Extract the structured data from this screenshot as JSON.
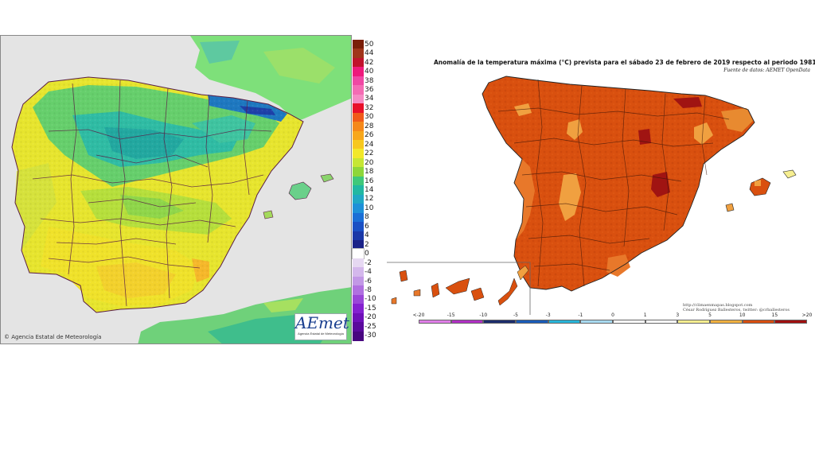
{
  "left_map": {
    "credit": "© Agencia Estatal de Meteorología",
    "logo": {
      "word": "AEmet",
      "subtitle": "Agencia Estatal de Meteorología"
    },
    "legend": [
      {
        "label": "50",
        "color": "#7a1e08"
      },
      {
        "label": "44",
        "color": "#a0341a"
      },
      {
        "label": "42",
        "color": "#c0122c"
      },
      {
        "label": "40",
        "color": "#ee1a7c"
      },
      {
        "label": "38",
        "color": "#f048a4"
      },
      {
        "label": "36",
        "color": "#f46cb4"
      },
      {
        "label": "34",
        "color": "#f58cc4"
      },
      {
        "label": "32",
        "color": "#e8102a"
      },
      {
        "label": "30",
        "color": "#f05a1a"
      },
      {
        "label": "28",
        "color": "#f5881a"
      },
      {
        "label": "26",
        "color": "#f7a71c"
      },
      {
        "label": "24",
        "color": "#f7c81e"
      },
      {
        "label": "22",
        "color": "#f2e82a"
      },
      {
        "label": "20",
        "color": "#c6e634"
      },
      {
        "label": "18",
        "color": "#8ed63a"
      },
      {
        "label": "16",
        "color": "#40c87a"
      },
      {
        "label": "14",
        "color": "#22b8a2"
      },
      {
        "label": "12",
        "color": "#20a8c4"
      },
      {
        "label": "10",
        "color": "#1e90d8"
      },
      {
        "label": "8",
        "color": "#1a6ed6"
      },
      {
        "label": "6",
        "color": "#1a50c4"
      },
      {
        "label": "4",
        "color": "#1a38a8"
      },
      {
        "label": "2",
        "color": "#1a2288"
      },
      {
        "label": "0",
        "color": "#ffffff"
      },
      {
        "label": "-2",
        "color": "#e6d8f2"
      },
      {
        "label": "-4",
        "color": "#d4b8ec"
      },
      {
        "label": "-6",
        "color": "#c298e6"
      },
      {
        "label": "-8",
        "color": "#b070e0"
      },
      {
        "label": "-10",
        "color": "#9a46d8"
      },
      {
        "label": "-15",
        "color": "#8420d0"
      },
      {
        "label": "-20",
        "color": "#6e10b8"
      },
      {
        "label": "-25",
        "color": "#5a0a9c"
      },
      {
        "label": "-30",
        "color": "#480680"
      }
    ]
  },
  "right_map": {
    "title": "Anomalía de la temperatura máxima (°C) prevista para el sábado 23 de febrero de 2019 respecto al periodo 1981-2010",
    "source": "Fuente de datos: AEMET OpenData",
    "credit_line1": "http://climaenmapas.blogspot.com",
    "credit_line2": "César Rodríguez Ballesteros, twitter: @crballesteros",
    "legend": [
      {
        "label": "<-20",
        "color": "#e07ee8"
      },
      {
        "label": "-15",
        "color": "#b030c4"
      },
      {
        "label": "-10",
        "color": "#1c2c6c"
      },
      {
        "label": "-5",
        "color": "#1a5cb8"
      },
      {
        "label": "-3",
        "color": "#28b4d8"
      },
      {
        "label": "-1",
        "color": "#a8daf0"
      },
      {
        "label": "0",
        "color": "#ffffff"
      },
      {
        "label": "1",
        "color": "#ffffff"
      },
      {
        "label": "3",
        "color": "#f6ee90"
      },
      {
        "label": "5",
        "color": "#f0b040"
      },
      {
        "label": "10",
        "color": "#d84e10"
      },
      {
        "label": "15",
        "color": "#a01010"
      },
      {
        "label": ">20",
        "color": "#5a2a08"
      }
    ]
  }
}
